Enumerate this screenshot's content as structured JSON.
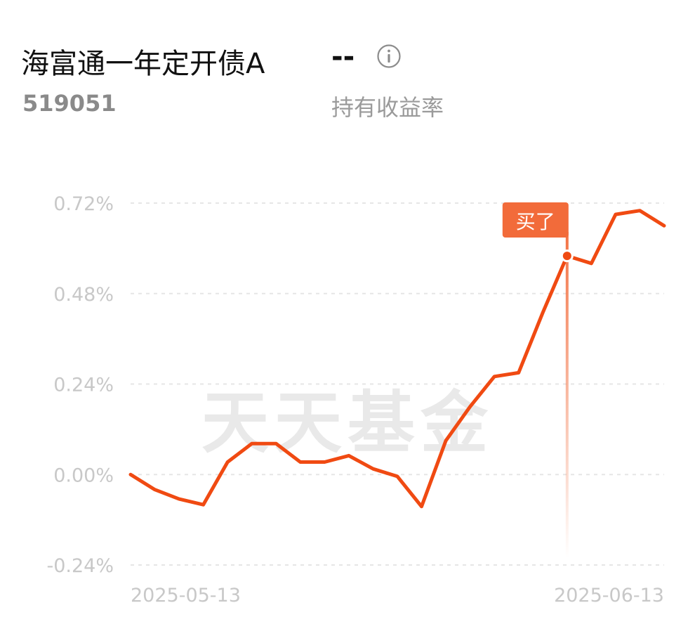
{
  "header": {
    "title": "海富通一年定开债A",
    "return_value": "--",
    "code": "519051",
    "return_label": "持有收益率"
  },
  "watermark": "天天基金",
  "colors": {
    "line": "#f04a12",
    "marker_fill": "#f26b3a",
    "grid": "#e6e6e6",
    "axis_text": "#c8c8c8"
  },
  "icons": {
    "info": "info-circle-icon"
  },
  "chart_data": {
    "type": "line",
    "title": "",
    "xlabel": "",
    "ylabel": "",
    "y_unit": "%",
    "ylim": [
      -0.24,
      0.72
    ],
    "y_ticks": [
      0.72,
      0.48,
      0.24,
      0.0,
      -0.24
    ],
    "y_tick_labels": [
      "0.72%",
      "0.48%",
      "0.24%",
      "0.00%",
      "-0.24%"
    ],
    "x_tick_labels": [
      "2025-05-13",
      "2025-06-13"
    ],
    "grid": "horizontal-dashed",
    "series": [
      {
        "values": [
          0.0,
          -0.04,
          -0.065,
          -0.08,
          0.033,
          0.082,
          0.082,
          0.033,
          0.033,
          0.05,
          0.015,
          -0.005,
          -0.085,
          0.09,
          0.18,
          0.26,
          0.27,
          0.43,
          0.58,
          0.56,
          0.69,
          0.7,
          0.66
        ]
      }
    ],
    "annotations": [
      {
        "label": "买了",
        "index": 18
      }
    ]
  }
}
